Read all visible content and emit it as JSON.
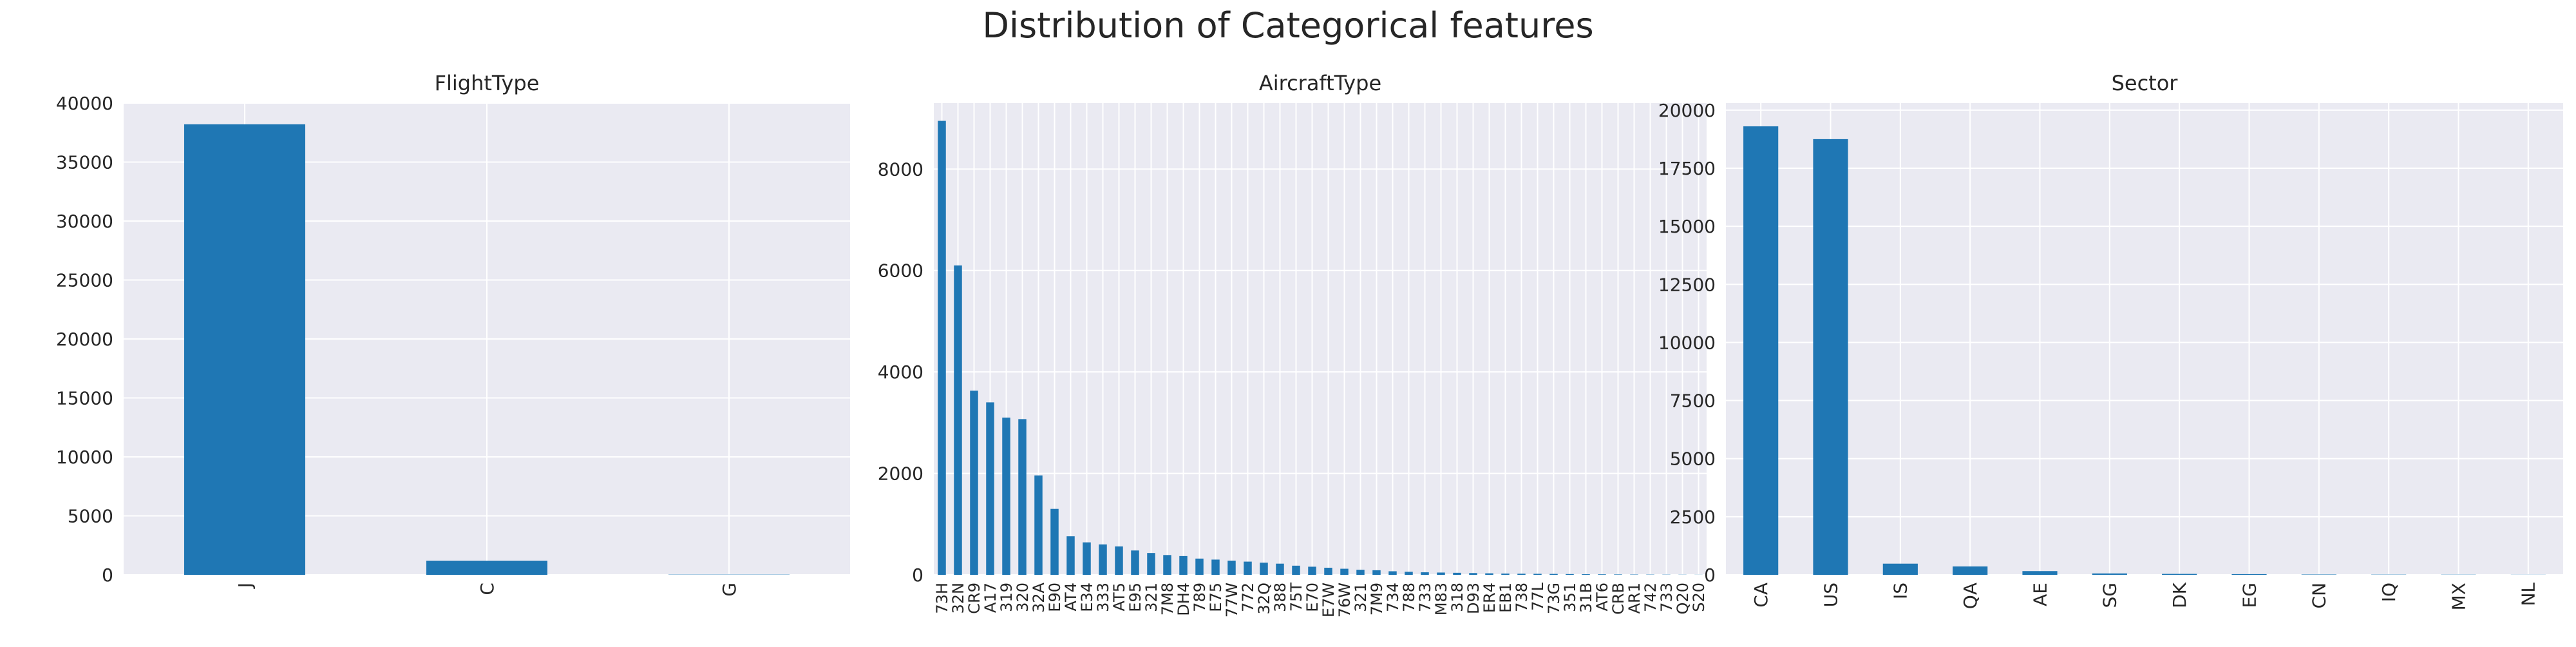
{
  "suptitle": "Distribution of Categorical features",
  "colors": {
    "bar": "#1f77b4",
    "axes_face": "#eaeaf2",
    "grid": "#ffffff",
    "text": "#262626",
    "page": "#ffffff"
  },
  "chart_data": [
    {
      "type": "bar",
      "title": "FlightType",
      "xlabel": "",
      "ylabel": "",
      "categories": [
        "J",
        "C",
        "G"
      ],
      "values": [
        38200,
        1200,
        20
      ],
      "ylim": [
        0,
        40000
      ],
      "yticks": [
        0,
        5000,
        10000,
        15000,
        20000,
        25000,
        30000,
        35000,
        40000
      ],
      "yticklabels": [
        "0",
        "5000",
        "10000",
        "15000",
        "20000",
        "25000",
        "30000",
        "35000",
        "40000"
      ],
      "grid": true,
      "xtick_rotation": 90
    },
    {
      "type": "bar",
      "title": "AircraftType",
      "xlabel": "",
      "ylabel": "",
      "categories": [
        "73H",
        "32N",
        "CR9",
        "A17",
        "319",
        "320",
        "32A",
        "E90",
        "AT4",
        "E34",
        "333",
        "AT5",
        "E95",
        "321",
        "7M8",
        "DH4",
        "789",
        "E75",
        "77W",
        "772",
        "32Q",
        "388",
        "75T",
        "E70",
        "E7W",
        "76W",
        "321",
        "7M9",
        "734",
        "788",
        "733",
        "M83",
        "318",
        "D93",
        "ER4",
        "EB1",
        "738",
        "77L",
        "73G",
        "351",
        "31B",
        "AT6",
        "CRB",
        "AR1",
        "742",
        "733",
        "Q20",
        "S20"
      ],
      "values": [
        8950,
        6100,
        3630,
        3400,
        3100,
        3070,
        1960,
        1300,
        760,
        640,
        600,
        560,
        480,
        430,
        390,
        370,
        320,
        300,
        280,
        260,
        240,
        220,
        180,
        160,
        140,
        120,
        100,
        90,
        70,
        60,
        50,
        45,
        40,
        35,
        30,
        25,
        22,
        20,
        18,
        15,
        12,
        10,
        8,
        6,
        5,
        4,
        3,
        2
      ],
      "ylim": [
        0,
        9300
      ],
      "yticks": [
        0,
        2000,
        4000,
        6000,
        8000
      ],
      "yticklabels": [
        "0",
        "2000",
        "4000",
        "6000",
        "8000"
      ],
      "grid": true,
      "xtick_rotation": 90
    },
    {
      "type": "bar",
      "title": "Sector",
      "xlabel": "",
      "ylabel": "",
      "categories": [
        "CA",
        "US",
        "IS",
        "QA",
        "AE",
        "SG",
        "DK",
        "EG",
        "CN",
        "IQ",
        "MX",
        "NL"
      ],
      "values": [
        19300,
        18750,
        480,
        360,
        160,
        60,
        40,
        30,
        15,
        10,
        8,
        5
      ],
      "ylim": [
        0,
        20300
      ],
      "yticks": [
        0,
        2500,
        5000,
        7500,
        10000,
        12500,
        15000,
        17500,
        20000
      ],
      "yticklabels": [
        "0",
        "2500",
        "5000",
        "7500",
        "10000",
        "12500",
        "15000",
        "17500",
        "20000"
      ],
      "grid": true,
      "xtick_rotation": 90
    }
  ]
}
